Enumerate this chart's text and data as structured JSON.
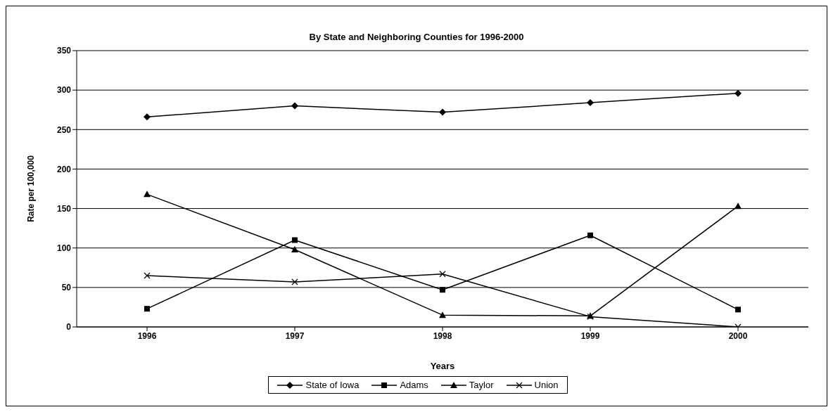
{
  "chart_data": {
    "type": "line",
    "title": "By State and Neighboring Counties for 1996-2000",
    "xlabel": "Years",
    "ylabel": "Rate per 100,000",
    "categories": [
      "1996",
      "1997",
      "1998",
      "1999",
      "2000"
    ],
    "series": [
      {
        "name": "State of Iowa",
        "color": "#000000",
        "marker": "diamond",
        "values": [
          266,
          280,
          272,
          284,
          296
        ]
      },
      {
        "name": "Adams",
        "color": "#000000",
        "marker": "square",
        "values": [
          23,
          110,
          47,
          116,
          22
        ]
      },
      {
        "name": "Taylor",
        "color": "#000000",
        "marker": "triangle",
        "values": [
          168,
          98,
          15,
          14,
          153
        ]
      },
      {
        "name": "Union",
        "color": "#000000",
        "marker": "cross",
        "values": [
          65,
          57,
          67,
          13,
          0
        ]
      }
    ],
    "ylim": [
      0,
      350
    ],
    "yticks": [
      0,
      50,
      100,
      150,
      200,
      250,
      300,
      350
    ],
    "grid": "y",
    "legend": "bottom",
    "line_style": "solid"
  }
}
